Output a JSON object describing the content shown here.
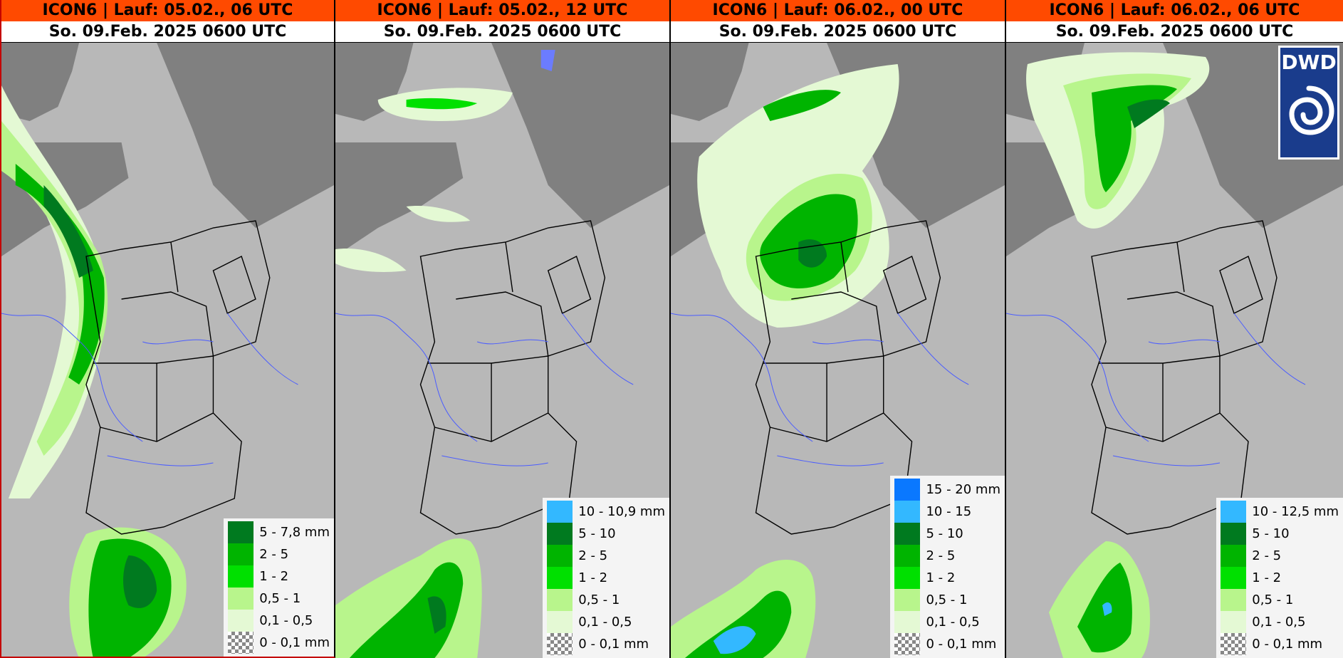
{
  "panels": [
    {
      "run_title": "ICON6 | Lauf: 05.02., 06 UTC",
      "valid_time": "So. 09.Feb. 2025 0600 UTC",
      "legend": [
        {
          "label": "5 - 7,8 mm",
          "color": "#007a1f"
        },
        {
          "label": "2 - 5",
          "color": "#00b400"
        },
        {
          "label": "1 - 2",
          "color": "#00e000"
        },
        {
          "label": "0,5 - 1",
          "color": "#b8f58c"
        },
        {
          "label": "0,1 - 0,5",
          "color": "#e4f9d4"
        },
        {
          "label": "0 - 0,1 mm",
          "color": "checker"
        }
      ]
    },
    {
      "run_title": "ICON6 | Lauf: 05.02., 12 UTC",
      "valid_time": "So. 09.Feb. 2025 0600 UTC",
      "legend": [
        {
          "label": "10 - 10,9 mm",
          "color": "#33b8ff"
        },
        {
          "label": "5 - 10",
          "color": "#007a1f"
        },
        {
          "label": "2 - 5",
          "color": "#00b400"
        },
        {
          "label": "1 - 2",
          "color": "#00e000"
        },
        {
          "label": "0,5 - 1",
          "color": "#b8f58c"
        },
        {
          "label": "0,1 - 0,5",
          "color": "#e4f9d4"
        },
        {
          "label": "0 - 0,1 mm",
          "color": "checker"
        }
      ]
    },
    {
      "run_title": "ICON6 | Lauf: 06.02., 00 UTC",
      "valid_time": "So. 09.Feb. 2025 0600 UTC",
      "legend": [
        {
          "label": "15 - 20 mm",
          "color": "#0a78ff"
        },
        {
          "label": "10 - 15",
          "color": "#33b8ff"
        },
        {
          "label": "5 - 10",
          "color": "#007a1f"
        },
        {
          "label": "2 - 5",
          "color": "#00b400"
        },
        {
          "label": "1 - 2",
          "color": "#00e000"
        },
        {
          "label": "0,5 - 1",
          "color": "#b8f58c"
        },
        {
          "label": "0,1 - 0,5",
          "color": "#e4f9d4"
        },
        {
          "label": "0 - 0,1 mm",
          "color": "checker"
        }
      ]
    },
    {
      "run_title": "ICON6 | Lauf: 06.02., 06 UTC",
      "valid_time": "So. 09.Feb. 2025 0600 UTC",
      "legend": [
        {
          "label": "10 - 12,5 mm",
          "color": "#33b8ff"
        },
        {
          "label": "5 - 10",
          "color": "#007a1f"
        },
        {
          "label": "2 - 5",
          "color": "#00b400"
        },
        {
          "label": "1 - 2",
          "color": "#00e000"
        },
        {
          "label": "0,5 - 1",
          "color": "#b8f58c"
        },
        {
          "label": "0,1 - 0,5",
          "color": "#e4f9d4"
        },
        {
          "label": "0 - 0,1 mm",
          "color": "checker"
        }
      ]
    }
  ],
  "logo": {
    "text": "DWD"
  },
  "colors": {
    "header_bg": "#ff4a00",
    "land": "#b8b8b8",
    "sea": "#808080",
    "rivers": "#4a5cff"
  }
}
